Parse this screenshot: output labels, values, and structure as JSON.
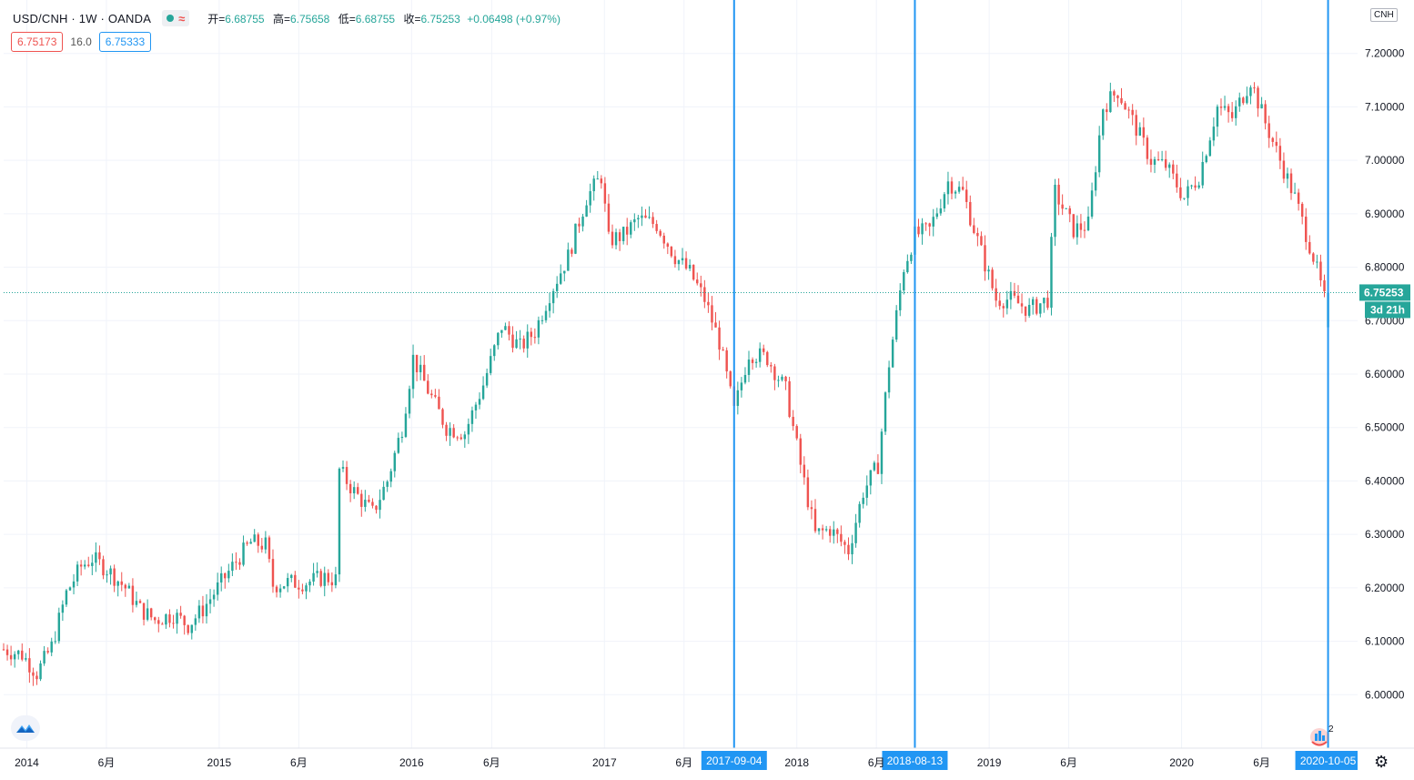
{
  "legend": {
    "symbol": "USD/CNH · 1W · OANDA",
    "open_label": "开=",
    "open": "6.68755",
    "high_label": "高=",
    "high": "6.75658",
    "low_label": "低=",
    "low": "6.68755",
    "close_label": "收=",
    "close": "6.75253",
    "change": "+0.06498 (+0.97%)"
  },
  "quote": {
    "bid": "6.75173",
    "spread": "16.0",
    "ask": "6.75333"
  },
  "currency_badge": "CNH",
  "last_price_label": "6.75253",
  "countdown_label": "3d 21h",
  "event_count": "2",
  "colors": {
    "up": "#26a69a",
    "down": "#ef5350",
    "vline": "#2196f3",
    "grid": "#f0f3fa"
  },
  "icons": {
    "logo": "tradingview-logo-icon",
    "settings": "gear-icon",
    "event": "flag-event-icon"
  },
  "chart_data": {
    "type": "candlestick",
    "title": "USD/CNH · 1W · OANDA",
    "ylim": [
      5.9,
      7.3
    ],
    "xlim": [
      "2013-11-18",
      "2020-11-30"
    ],
    "y_ticks": [
      "6.00000",
      "6.10000",
      "6.20000",
      "6.30000",
      "6.40000",
      "6.50000",
      "6.60000",
      "6.70000",
      "6.80000",
      "6.90000",
      "7.00000",
      "7.10000",
      "7.20000"
    ],
    "x_ticks": [
      {
        "date": "2014-01-01",
        "label": "2014"
      },
      {
        "date": "2014-06-01",
        "label": "6月"
      },
      {
        "date": "2015-01-01",
        "label": "2015"
      },
      {
        "date": "2015-06-01",
        "label": "6月"
      },
      {
        "date": "2016-01-01",
        "label": "2016"
      },
      {
        "date": "2016-06-01",
        "label": "6月"
      },
      {
        "date": "2017-01-01",
        "label": "2017"
      },
      {
        "date": "2017-06-01",
        "label": "6月"
      },
      {
        "date": "2018-01-01",
        "label": "2018"
      },
      {
        "date": "2018-06-01",
        "label": "6月"
      },
      {
        "date": "2019-01-01",
        "label": "2019"
      },
      {
        "date": "2019-06-01",
        "label": "6月"
      },
      {
        "date": "2020-01-01",
        "label": "2020"
      },
      {
        "date": "2020-06-01",
        "label": "6月"
      }
    ],
    "vertical_markers": [
      {
        "date": "2017-09-04",
        "label": "2017-09-04"
      },
      {
        "date": "2018-08-13",
        "label": "2018-08-13"
      },
      {
        "date": "2020-10-05",
        "label": "2020-10-05"
      }
    ],
    "last_price": 6.75253,
    "grid": true,
    "start_date": "2013-11-18",
    "close_path": [
      [
        "2013-11-18",
        6.085
      ],
      [
        "2013-12-23",
        6.075
      ],
      [
        "2014-01-20",
        6.04
      ],
      [
        "2014-02-17",
        6.09
      ],
      [
        "2014-03-17",
        6.19
      ],
      [
        "2014-04-14",
        6.24
      ],
      [
        "2014-05-05",
        6.255
      ],
      [
        "2014-06-02",
        6.235
      ],
      [
        "2014-07-07",
        6.2
      ],
      [
        "2014-08-04",
        6.16
      ],
      [
        "2014-09-01",
        6.14
      ],
      [
        "2014-10-06",
        6.15
      ],
      [
        "2014-11-03",
        6.13
      ],
      [
        "2014-12-01",
        6.16
      ],
      [
        "2015-01-05",
        6.21
      ],
      [
        "2015-02-02",
        6.25
      ],
      [
        "2015-03-02",
        6.285
      ],
      [
        "2015-03-30",
        6.28
      ],
      [
        "2015-04-13",
        6.205
      ],
      [
        "2015-05-11",
        6.21
      ],
      [
        "2015-06-15",
        6.21
      ],
      [
        "2015-07-20",
        6.22
      ],
      [
        "2015-08-10",
        6.215
      ],
      [
        "2015-08-17",
        6.42
      ],
      [
        "2015-09-14",
        6.38
      ],
      [
        "2015-10-19",
        6.34
      ],
      [
        "2015-11-16",
        6.4
      ],
      [
        "2015-12-14",
        6.5
      ],
      [
        "2016-01-04",
        6.63
      ],
      [
        "2016-02-01",
        6.57
      ],
      [
        "2016-03-07",
        6.5
      ],
      [
        "2016-04-11",
        6.49
      ],
      [
        "2016-05-16",
        6.58
      ],
      [
        "2016-06-20",
        6.69
      ],
      [
        "2016-07-25",
        6.65
      ],
      [
        "2016-08-22",
        6.68
      ],
      [
        "2016-09-19",
        6.75
      ],
      [
        "2016-10-24",
        6.82
      ],
      [
        "2016-11-28",
        6.93
      ],
      [
        "2016-12-26",
        6.97
      ],
      [
        "2017-01-09",
        6.85
      ],
      [
        "2017-02-06",
        6.86
      ],
      [
        "2017-03-06",
        6.89
      ],
      [
        "2017-04-10",
        6.88
      ],
      [
        "2017-05-15",
        6.82
      ],
      [
        "2017-06-12",
        6.79
      ],
      [
        "2017-07-10",
        6.74
      ],
      [
        "2017-08-07",
        6.66
      ],
      [
        "2017-09-04",
        6.53
      ],
      [
        "2017-10-02",
        6.64
      ],
      [
        "2017-11-06",
        6.63
      ],
      [
        "2017-12-11",
        6.57
      ],
      [
        "2018-01-08",
        6.43
      ],
      [
        "2018-02-05",
        6.3
      ],
      [
        "2018-03-05",
        6.31
      ],
      [
        "2018-04-09",
        6.27
      ],
      [
        "2018-05-07",
        6.38
      ],
      [
        "2018-06-04",
        6.43
      ],
      [
        "2018-06-25",
        6.62
      ],
      [
        "2018-07-23",
        6.8
      ],
      [
        "2018-08-13",
        6.86
      ],
      [
        "2018-09-10",
        6.87
      ],
      [
        "2018-10-15",
        6.96
      ],
      [
        "2018-11-12",
        6.94
      ],
      [
        "2018-12-10",
        6.85
      ],
      [
        "2019-01-14",
        6.74
      ],
      [
        "2019-02-11",
        6.74
      ],
      [
        "2019-03-18",
        6.72
      ],
      [
        "2019-04-22",
        6.74
      ],
      [
        "2019-05-06",
        6.94
      ],
      [
        "2019-06-10",
        6.87
      ],
      [
        "2019-07-08",
        6.88
      ],
      [
        "2019-08-05",
        7.1
      ],
      [
        "2019-09-02",
        7.13
      ],
      [
        "2019-10-07",
        7.06
      ],
      [
        "2019-11-04",
        7.0
      ],
      [
        "2019-12-02",
        6.99
      ],
      [
        "2020-01-06",
        6.93
      ],
      [
        "2020-02-03",
        6.97
      ],
      [
        "2020-03-09",
        7.1
      ],
      [
        "2020-04-06",
        7.08
      ],
      [
        "2020-05-11",
        7.15
      ],
      [
        "2020-06-08",
        7.07
      ],
      [
        "2020-07-06",
        7.0
      ],
      [
        "2020-08-03",
        6.93
      ],
      [
        "2020-09-07",
        6.82
      ],
      [
        "2020-09-28",
        6.74
      ],
      [
        "2020-10-05",
        6.75253
      ]
    ]
  }
}
